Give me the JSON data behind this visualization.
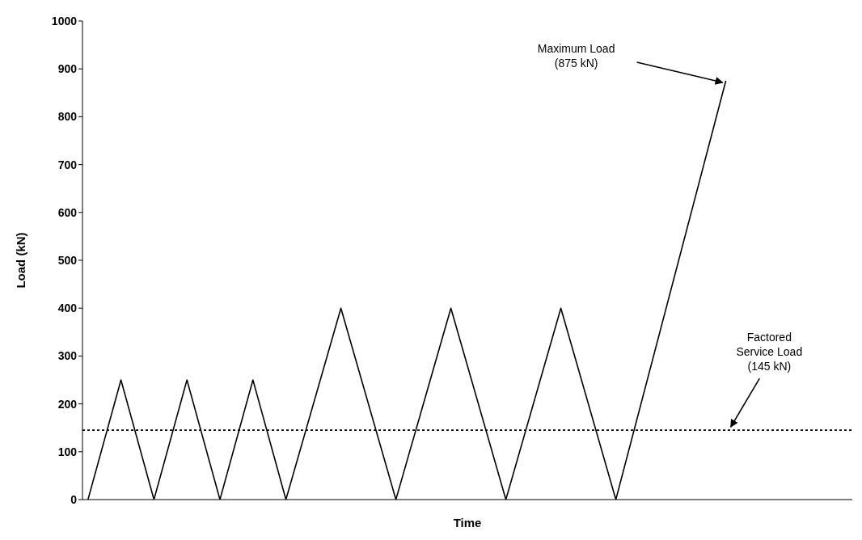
{
  "chart_data": {
    "type": "line",
    "xlabel": "Time",
    "ylabel": "Load (kN)",
    "categories": [
      null,
      null,
      null,
      null,
      null,
      null,
      null,
      null,
      null,
      null,
      null,
      null,
      null,
      null,
      null,
      null,
      null,
      null,
      null,
      null,
      null,
      null,
      null,
      null,
      null,
      null,
      null,
      null,
      null,
      null,
      null,
      null,
      null,
      null,
      null,
      null,
      null,
      null,
      null,
      null,
      null,
      null,
      null,
      null,
      null,
      null,
      null,
      null,
      null,
      null,
      null,
      null,
      null,
      null,
      null,
      null,
      null,
      null,
      null,
      null,
      null,
      null,
      null,
      null,
      null,
      null,
      null,
      null,
      null,
      null
    ],
    "series": [
      {
        "color": "#000000",
        "values": [
          0,
          null,
          null,
          250,
          null,
          null,
          0,
          null,
          null,
          250,
          null,
          null,
          0,
          null,
          null,
          250,
          null,
          null,
          0,
          null,
          null,
          null,
          null,
          400,
          null,
          null,
          null,
          null,
          0,
          null,
          null,
          null,
          null,
          400,
          null,
          null,
          null,
          null,
          0,
          null,
          null,
          null,
          null,
          400,
          null,
          null,
          null,
          null,
          0,
          null,
          null,
          null,
          null,
          null,
          null,
          null,
          null,
          null,
          875,
          null,
          null,
          null,
          null,
          null,
          null,
          null,
          null,
          null,
          null,
          null
        ]
      }
    ],
    "ylim": [
      0,
      1000
    ],
    "yticks": [
      0,
      100,
      200,
      300,
      400,
      500,
      600,
      700,
      800,
      900,
      1000
    ],
    "grid": false,
    "legend": false,
    "marker": "none",
    "line_style": "solid",
    "tick_labels": "y",
    "ref_lines": [
      {
        "axis": "y",
        "value": 145,
        "label": null,
        "color": "#000000",
        "line_style": "dotted"
      }
    ],
    "annotations": [
      "Maximum Load\n(875 kN)",
      "Factored\nService Load\n(145 kN)"
    ]
  }
}
